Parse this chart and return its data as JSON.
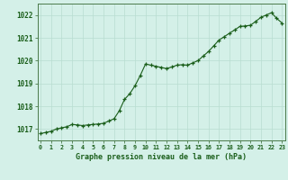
{
  "x": [
    0,
    0.5,
    1,
    1.5,
    2,
    2.5,
    3,
    3.5,
    4,
    4.5,
    5,
    5.5,
    6,
    6.5,
    7,
    7.5,
    8,
    8.5,
    9,
    9.5,
    10,
    10.5,
    11,
    11.5,
    12,
    12.5,
    13,
    13.5,
    14,
    14.5,
    15,
    15.5,
    16,
    16.5,
    17,
    17.5,
    18,
    18.5,
    19,
    19.5,
    20,
    20.5,
    21,
    21.5,
    22,
    22.5,
    23
  ],
  "y": [
    1016.8,
    1016.85,
    1016.9,
    1017.0,
    1017.05,
    1017.1,
    1017.2,
    1017.18,
    1017.15,
    1017.18,
    1017.2,
    1017.22,
    1017.25,
    1017.35,
    1017.45,
    1017.8,
    1018.3,
    1018.55,
    1018.9,
    1019.35,
    1019.85,
    1019.8,
    1019.75,
    1019.7,
    1019.65,
    1019.72,
    1019.8,
    1019.82,
    1019.8,
    1019.9,
    1020.0,
    1020.2,
    1020.4,
    1020.65,
    1020.9,
    1021.05,
    1021.2,
    1021.35,
    1021.5,
    1021.52,
    1021.55,
    1021.72,
    1021.9,
    1022.0,
    1022.1,
    1021.85,
    1021.65
  ],
  "line_color": "#1a5e1a",
  "marker_color": "#1a5e1a",
  "bg_color": "#d4f0e8",
  "grid_color": "#b8ddd0",
  "title": "Graphe pression niveau de la mer (hPa)",
  "xtick_labels": [
    "0",
    "1",
    "2",
    "3",
    "4",
    "5",
    "6",
    "7",
    "8",
    "9",
    "10",
    "11",
    "12",
    "13",
    "14",
    "15",
    "16",
    "17",
    "18",
    "19",
    "20",
    "21",
    "22",
    "23"
  ],
  "xtick_positions": [
    0,
    1,
    2,
    3,
    4,
    5,
    6,
    7,
    8,
    9,
    10,
    11,
    12,
    13,
    14,
    15,
    16,
    17,
    18,
    19,
    20,
    21,
    22,
    23
  ],
  "yticks": [
    1017,
    1018,
    1019,
    1020,
    1021,
    1022
  ],
  "ylim": [
    1016.5,
    1022.5
  ],
  "xlim": [
    -0.3,
    23.3
  ]
}
